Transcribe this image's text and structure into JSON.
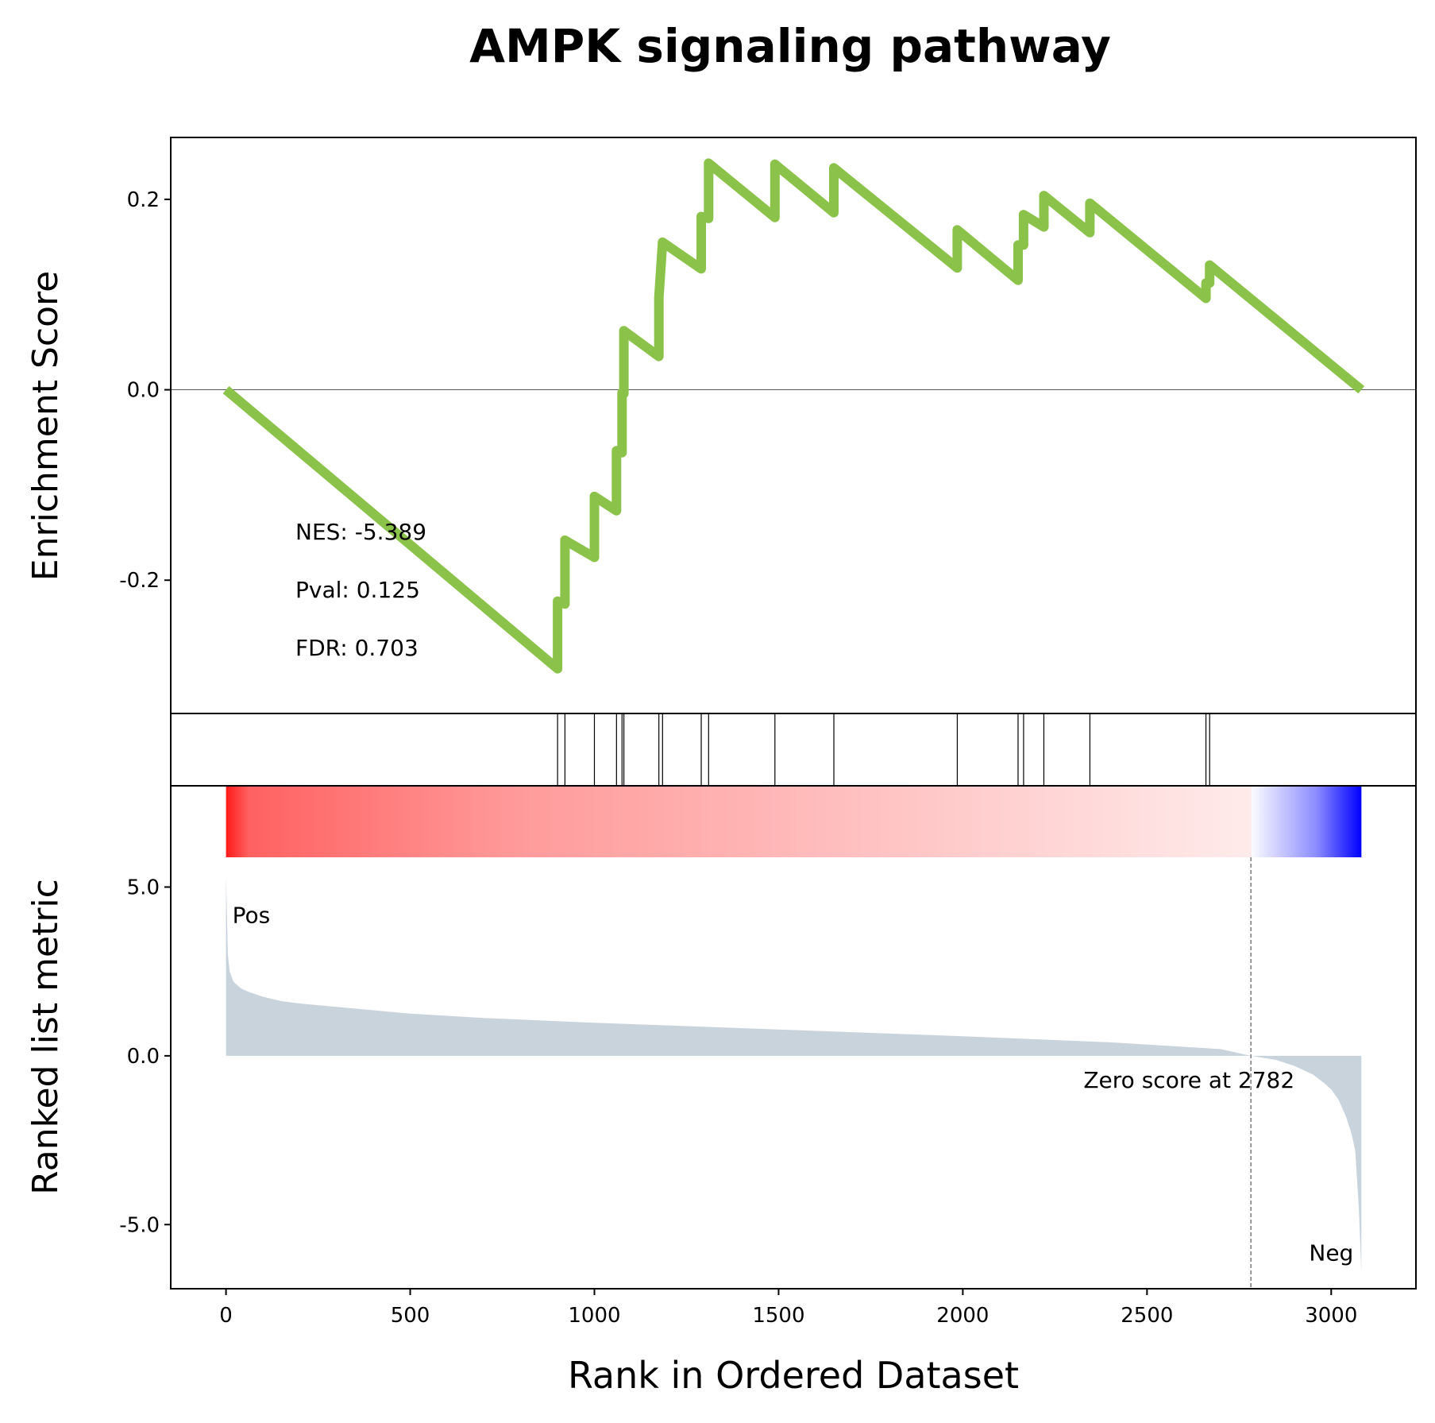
{
  "chart_data": {
    "title": "AMPK signaling pathway",
    "type": "line",
    "x_axis": {
      "label": "Rank in Ordered Dataset",
      "ticks": [
        0,
        500,
        1000,
        1500,
        2000,
        2500,
        3000
      ],
      "tick_labels": [
        "0",
        "500",
        "1000",
        "1500",
        "2000",
        "2500",
        "3000"
      ],
      "range": [
        -150,
        3230
      ]
    },
    "enrichment_panel": {
      "ylabel": "Enrichment Score",
      "ylim": [
        -0.34,
        0.265
      ],
      "yticks": [
        -0.2,
        0.0,
        0.2
      ],
      "ytick_labels": [
        "-0.2",
        "0.0",
        "0.2"
      ],
      "zero_line": true,
      "line_color": "#8bc34a",
      "stats": [
        "NES: -5.389",
        "Pval: 0.125",
        "FDR: 0.703"
      ],
      "hit_ranks": [
        900,
        920,
        1000,
        1060,
        1075,
        1080,
        1175,
        1185,
        1290,
        1310,
        1490,
        1650,
        1985,
        2150,
        2165,
        2220,
        2345,
        2660,
        2670
      ],
      "series": [
        {
          "x": [
            0,
            900,
            900,
            920,
            920,
            1000,
            1000,
            1060,
            1060,
            1075,
            1075,
            1080,
            1080,
            1175,
            1175,
            1185,
            1185,
            1290,
            1290,
            1310,
            1310,
            1490,
            1490,
            1650,
            1650,
            1985,
            1985,
            2150,
            2150,
            2165,
            2165,
            2220,
            2220,
            2345,
            2345,
            2660,
            2660,
            2670,
            2670,
            3082
          ],
          "y": [
            0.0,
            -0.293,
            -0.222,
            -0.225,
            -0.158,
            -0.176,
            -0.112,
            -0.127,
            -0.064,
            -0.066,
            -0.003,
            -0.004,
            0.062,
            0.035,
            0.097,
            0.155,
            0.155,
            0.127,
            0.182,
            0.18,
            0.238,
            0.181,
            0.237,
            0.186,
            0.233,
            0.128,
            0.168,
            0.115,
            0.152,
            0.152,
            0.184,
            0.171,
            0.204,
            0.165,
            0.196,
            0.096,
            0.112,
            0.112,
            0.131,
            0.0
          ]
        }
      ]
    },
    "heatmap_bar": {
      "x_range": [
        0,
        3082
      ],
      "zero_at": 2782,
      "pos_color": "#ff0000",
      "neg_color": "#0000ff"
    },
    "ranked_panel": {
      "ylabel": "Ranked list metric",
      "ylim": [
        -6.9,
        8.0
      ],
      "yticks": [
        -5.0,
        0.0,
        5.0
      ],
      "ytick_labels": [
        "-5.0",
        "0.0",
        "5.0"
      ],
      "fill_color": "#c9d3dc",
      "pos_label": "Pos",
      "neg_label": "Neg",
      "pos_label_color": "#ff0000",
      "neg_label_color": "#0000ff",
      "zero_score_text": "Zero score at 2782",
      "zero_score_rank": 2782,
      "curve": {
        "x": [
          0,
          2,
          5,
          10,
          20,
          40,
          60,
          100,
          150,
          200,
          300,
          400,
          500,
          700,
          1000,
          1500,
          2000,
          2400,
          2700,
          2782,
          2850,
          2900,
          2950,
          2980,
          3000,
          3020,
          3040,
          3055,
          3065,
          3075,
          3082
        ],
        "y": [
          5.3,
          4.5,
          3.0,
          2.5,
          2.2,
          2.0,
          1.9,
          1.75,
          1.62,
          1.55,
          1.45,
          1.35,
          1.25,
          1.12,
          0.98,
          0.78,
          0.58,
          0.4,
          0.2,
          0.0,
          -0.12,
          -0.3,
          -0.55,
          -0.8,
          -1.0,
          -1.3,
          -1.8,
          -2.3,
          -2.8,
          -4.5,
          -6.4
        ]
      }
    }
  }
}
